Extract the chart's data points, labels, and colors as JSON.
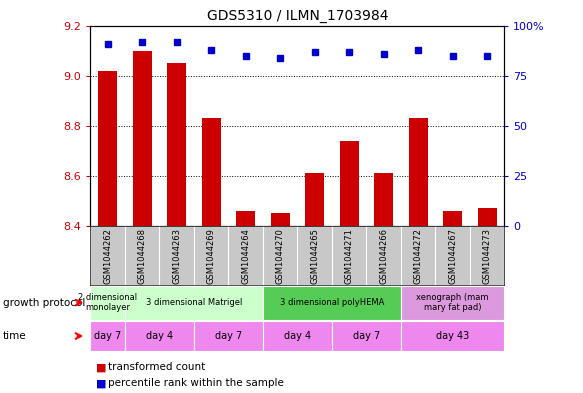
{
  "title": "GDS5310 / ILMN_1703984",
  "samples": [
    "GSM1044262",
    "GSM1044268",
    "GSM1044263",
    "GSM1044269",
    "GSM1044264",
    "GSM1044270",
    "GSM1044265",
    "GSM1044271",
    "GSM1044266",
    "GSM1044272",
    "GSM1044267",
    "GSM1044273"
  ],
  "transformed_count": [
    9.02,
    9.1,
    9.05,
    8.83,
    8.46,
    8.45,
    8.61,
    8.74,
    8.61,
    8.83,
    8.46,
    8.47
  ],
  "percentile_rank": [
    91,
    92,
    92,
    88,
    85,
    84,
    87,
    87,
    86,
    88,
    85,
    85
  ],
  "ylim_left": [
    8.4,
    9.2
  ],
  "ylim_right": [
    0,
    100
  ],
  "yticks_left": [
    8.4,
    8.6,
    8.8,
    9.0,
    9.2
  ],
  "yticks_right": [
    0,
    25,
    50,
    75,
    100
  ],
  "bar_color": "#cc0000",
  "dot_color": "#0000cc",
  "bar_width": 0.55,
  "xlabel_bg": "#c8c8c8",
  "growth_protocol_groups": [
    {
      "label": "2 dimensional\nmonolayer",
      "start": 0,
      "end": 1,
      "color": "#ccffcc"
    },
    {
      "label": "3 dimensional Matrigel",
      "start": 1,
      "end": 5,
      "color": "#ccffcc"
    },
    {
      "label": "3 dimensional polyHEMA",
      "start": 5,
      "end": 9,
      "color": "#55cc55"
    },
    {
      "label": "xenograph (mam\nmary fat pad)",
      "start": 9,
      "end": 12,
      "color": "#dd99dd"
    }
  ],
  "time_groups": [
    {
      "label": "day 7",
      "start": 0,
      "end": 1
    },
    {
      "label": "day 4",
      "start": 1,
      "end": 3
    },
    {
      "label": "day 7",
      "start": 3,
      "end": 5
    },
    {
      "label": "day 4",
      "start": 5,
      "end": 7
    },
    {
      "label": "day 7",
      "start": 7,
      "end": 9
    },
    {
      "label": "day 43",
      "start": 9,
      "end": 12
    }
  ],
  "time_color": "#ee88ee",
  "left_label_color": "#cc0000",
  "right_label_color": "#0000cc",
  "legend": [
    {
      "label": "transformed count",
      "color": "#cc0000"
    },
    {
      "label": "percentile rank within the sample",
      "color": "#0000cc"
    }
  ]
}
